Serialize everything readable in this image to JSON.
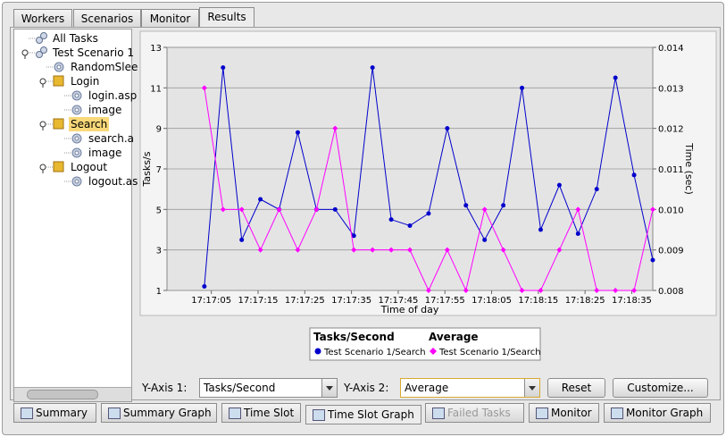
{
  "tabs": [
    "Workers",
    "Scenarios",
    "Monitor",
    "Results"
  ],
  "tree": [
    "All Tasks",
    "Test Scenario 1",
    "RandomSlee",
    "Login",
    "login.asp",
    "image",
    "Search",
    "search.a",
    "image",
    "Logout",
    "logout.as"
  ],
  "chart_data": {
    "type": "line",
    "x_label": "Time of day",
    "y_label": "Tasks/s",
    "y2_label": "Time (sec)",
    "legend_titles": [
      "Tasks/Second",
      "Average"
    ],
    "x": [
      62223.5,
      62227.5,
      62231.5,
      62235.5,
      62239.5,
      62243.5,
      62247.5,
      62251.5,
      62255.5,
      62259.5,
      62263.5,
      62267.5,
      62271.5,
      62275.5,
      62279.5,
      62283.5,
      62287.5,
      62291.5,
      62295.5,
      62299.5,
      62303.5,
      62307.5,
      62311.5,
      62315.5,
      62319.5
    ],
    "xlim": [
      62215.5,
      62319.5
    ],
    "xticks": [
      {
        "value": 62225,
        "label": "17:17:05"
      },
      {
        "value": 62235,
        "label": "17:17:15"
      },
      {
        "value": 62245,
        "label": "17:17:25"
      },
      {
        "value": 62255,
        "label": "17:17:35"
      },
      {
        "value": 62265,
        "label": "17:17:45"
      },
      {
        "value": 62275,
        "label": "17:17:55"
      },
      {
        "value": 62285,
        "label": "17:18:05"
      },
      {
        "value": 62295,
        "label": "17:18:15"
      },
      {
        "value": 62305,
        "label": "17:18:25"
      },
      {
        "value": 62315,
        "label": "17:18:35"
      }
    ],
    "ylim": [
      1,
      13
    ],
    "yticks": [
      1,
      3,
      5,
      7,
      9,
      11,
      13
    ],
    "y2lim": [
      0.008,
      0.014
    ],
    "y2ticks": [
      0.008,
      0.009,
      {
        "value": 0.01,
        "label": "0.010"
      },
      0.011,
      0.012,
      0.013,
      0.014
    ],
    "grid": true,
    "series": [
      {
        "name": "Test Scenario 1/Search",
        "color": "#0000cc",
        "values": [
          1.2,
          12,
          3.5,
          5.5,
          5,
          8.8,
          5,
          5,
          3.7,
          12,
          4.5,
          4.2,
          4.8,
          9,
          5.2,
          3.5,
          5.2,
          11,
          4,
          6.2,
          3.8,
          6,
          11.5,
          6.7,
          2.5
        ]
      },
      {
        "name": "Test Scenario 1/Search",
        "color": "#ff00ff",
        "axis": "y2",
        "values": [
          0.013,
          0.01,
          0.01,
          0.009,
          0.01,
          0.009,
          0.01,
          0.012,
          0.009,
          0.009,
          0.009,
          0.009,
          0.008,
          0.009,
          0.008,
          0.01,
          0.009,
          0.008,
          0.008,
          0.009,
          0.01,
          0.008,
          0.008,
          0.008,
          0.01
        ]
      }
    ]
  },
  "controls": {
    "y_axis_1_label": "Y-Axis 1:",
    "y_axis_1_value": "Tasks/Second",
    "y_axis_2_label": "Y-Axis 2:",
    "y_axis_2_value": "Average",
    "reset": "Reset",
    "customize": "Customize..."
  },
  "bottom_tabs": [
    "Summary",
    "Summary Graph",
    "Time Slot",
    "Time Slot Graph",
    "Failed Tasks",
    "Monitor",
    "Monitor Graph"
  ]
}
